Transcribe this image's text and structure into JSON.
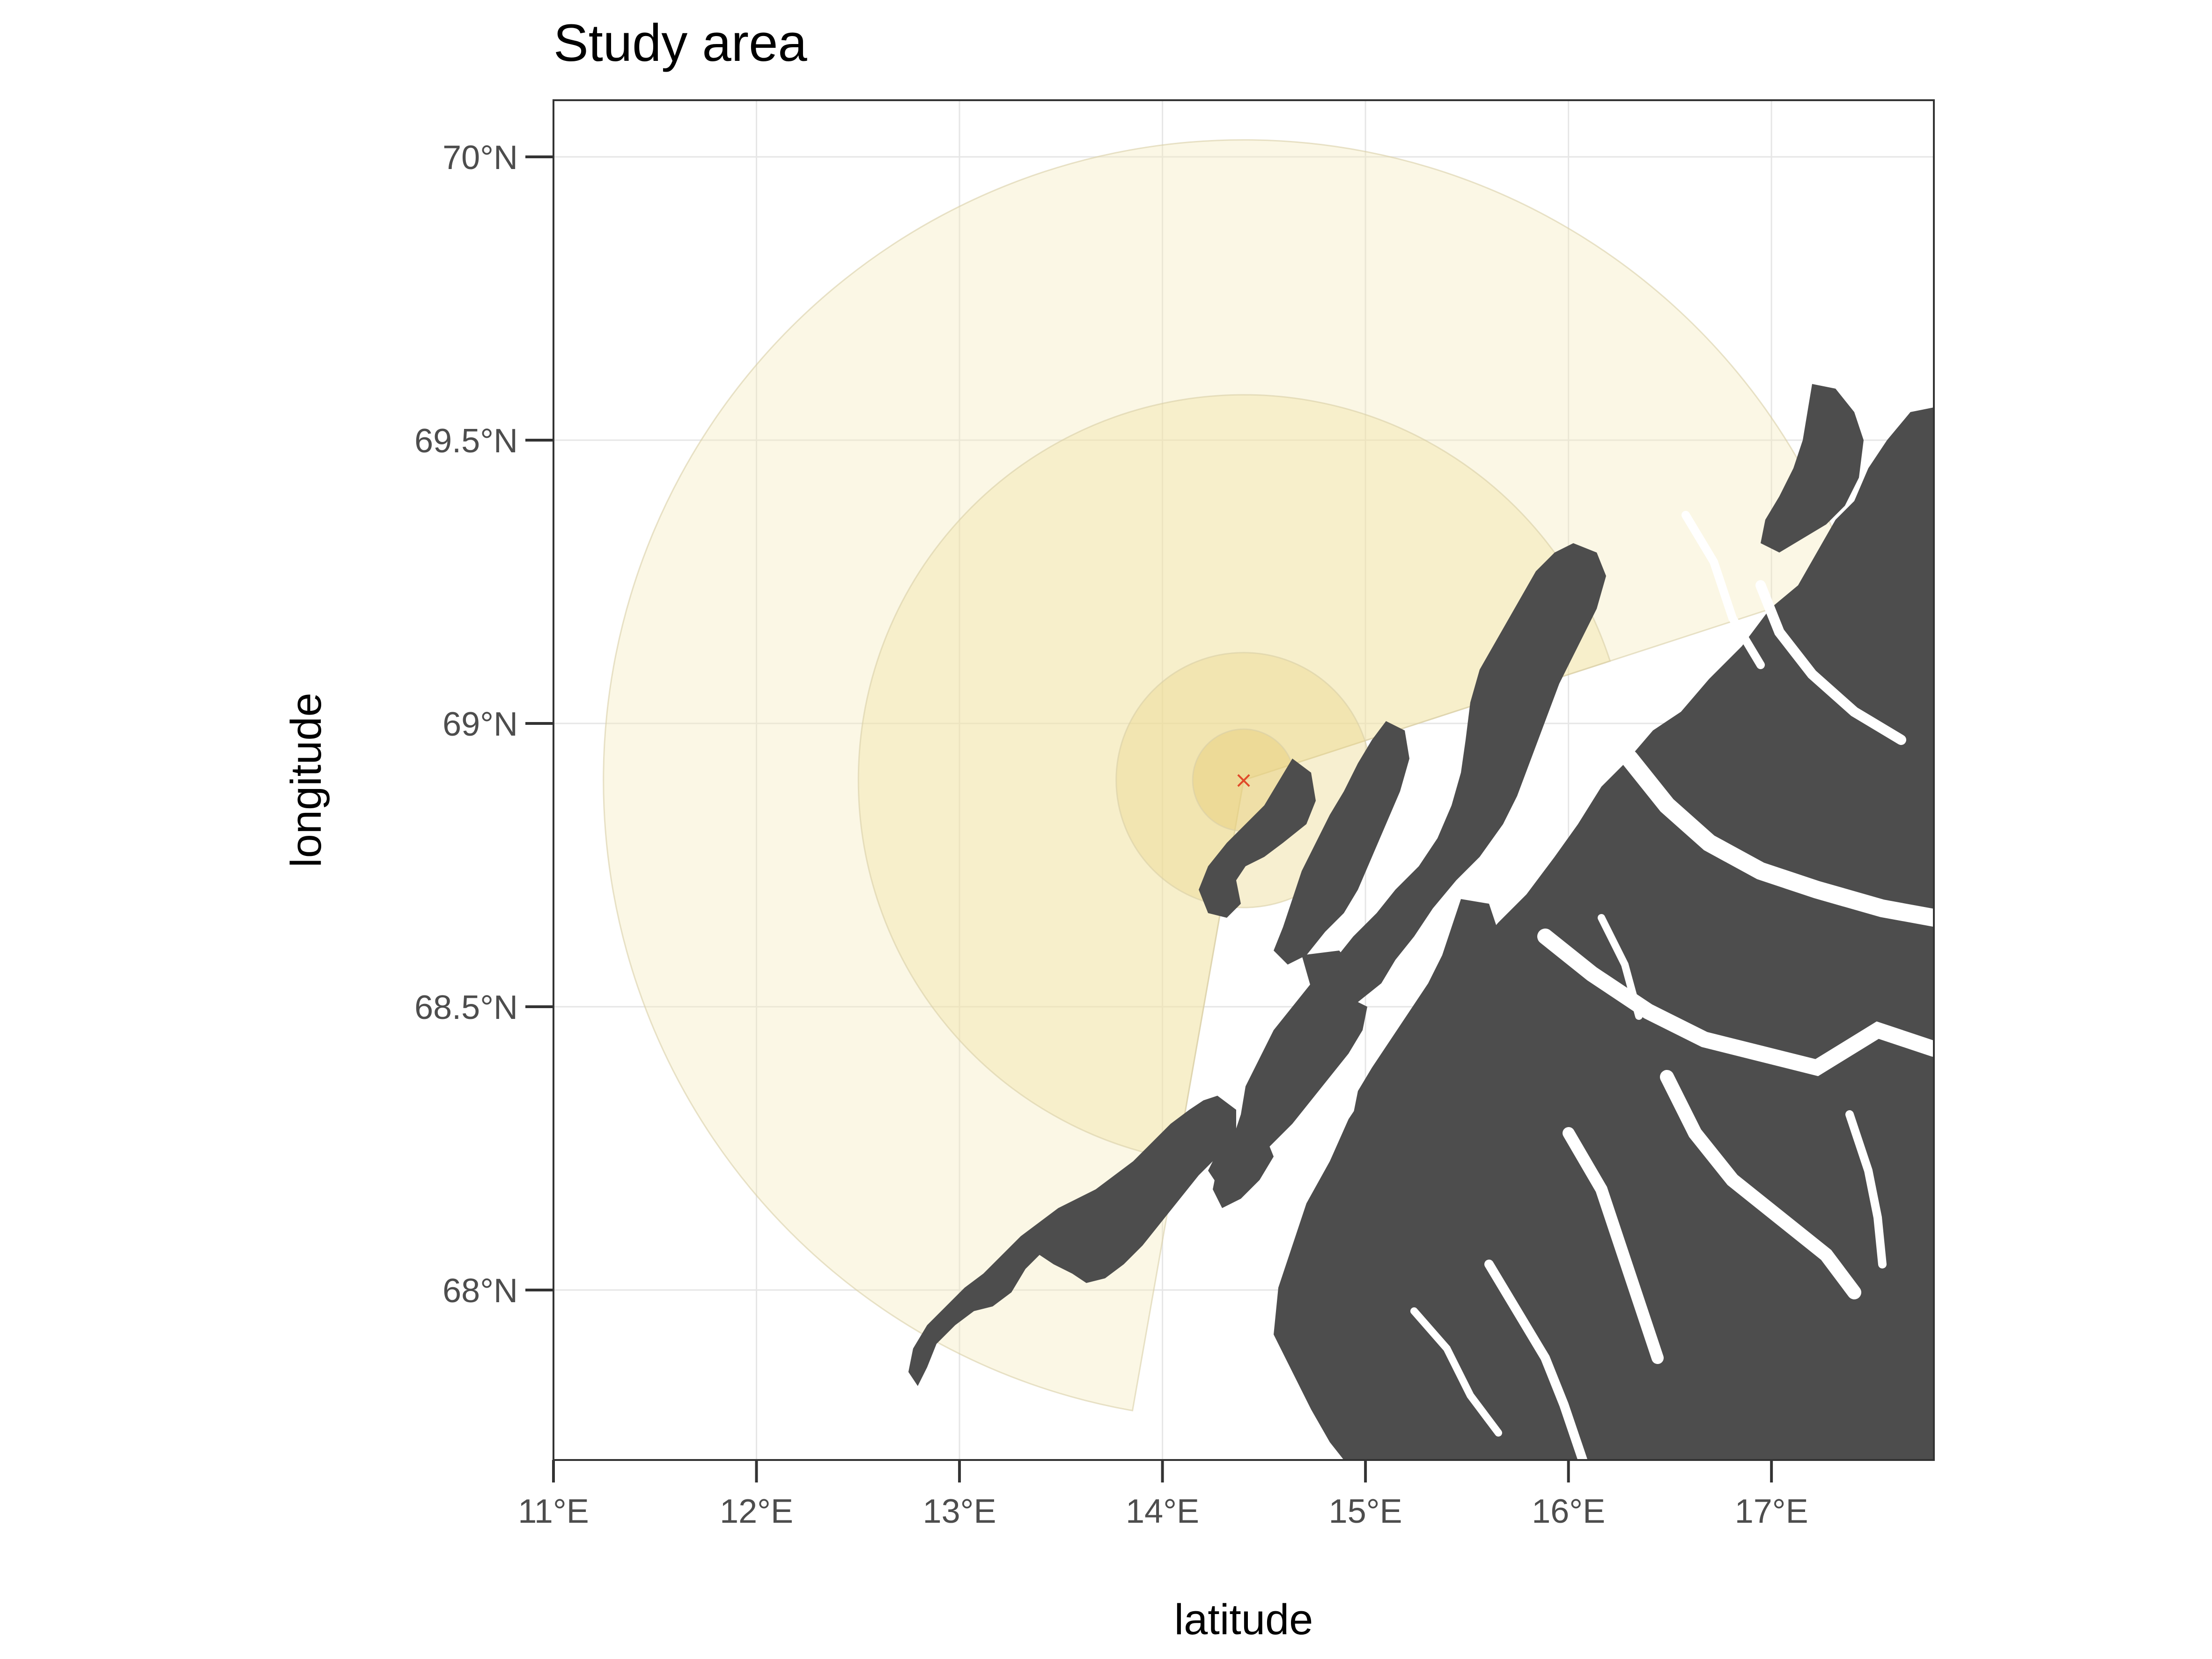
{
  "title": "Study area",
  "x_axis_title": "latitude",
  "y_axis_title": "longitude",
  "x_ticks": [
    {
      "value": 11,
      "label": "11°E"
    },
    {
      "value": 12,
      "label": "12°E"
    },
    {
      "value": 13,
      "label": "13°E"
    },
    {
      "value": 14,
      "label": "14°E"
    },
    {
      "value": 15,
      "label": "15°E"
    },
    {
      "value": 16,
      "label": "16°E"
    },
    {
      "value": 17,
      "label": "17°E"
    }
  ],
  "y_ticks": [
    {
      "value": 70.0,
      "label": "70°N"
    },
    {
      "value": 69.5,
      "label": "69.5°N"
    },
    {
      "value": 69.0,
      "label": "69°N"
    },
    {
      "value": 68.5,
      "label": "68.5°N"
    },
    {
      "value": 68.0,
      "label": "68°N"
    }
  ],
  "extent": {
    "lon": [
      11.0,
      17.8
    ],
    "lat": [
      67.7,
      70.1
    ]
  },
  "grid": true,
  "center_marker": {
    "lon": 14.4,
    "lat": 68.9,
    "symbol": "×",
    "color": "#e04a2a"
  },
  "buffer_rings": [
    {
      "outer_radius_deg_lat": 1.13,
      "sector": true,
      "fill": "#f3e7b5",
      "opacity": 0.35
    },
    {
      "outer_radius_deg_lat": 0.68,
      "sector": true,
      "fill": "#f0df9c",
      "opacity": 0.35
    },
    {
      "outer_radius_deg_lat": 0.225,
      "sector": false,
      "fill": "#ecd68a",
      "opacity": 0.4
    },
    {
      "outer_radius_deg_lat": 0.09,
      "sector": false,
      "fill": "#e8cf7d",
      "opacity": 0.5
    }
  ],
  "colors": {
    "land": "#4d4d4d",
    "panel_border": "#333333",
    "grid": "#e6e6e6",
    "tick_text": "#4d4d4d"
  }
}
